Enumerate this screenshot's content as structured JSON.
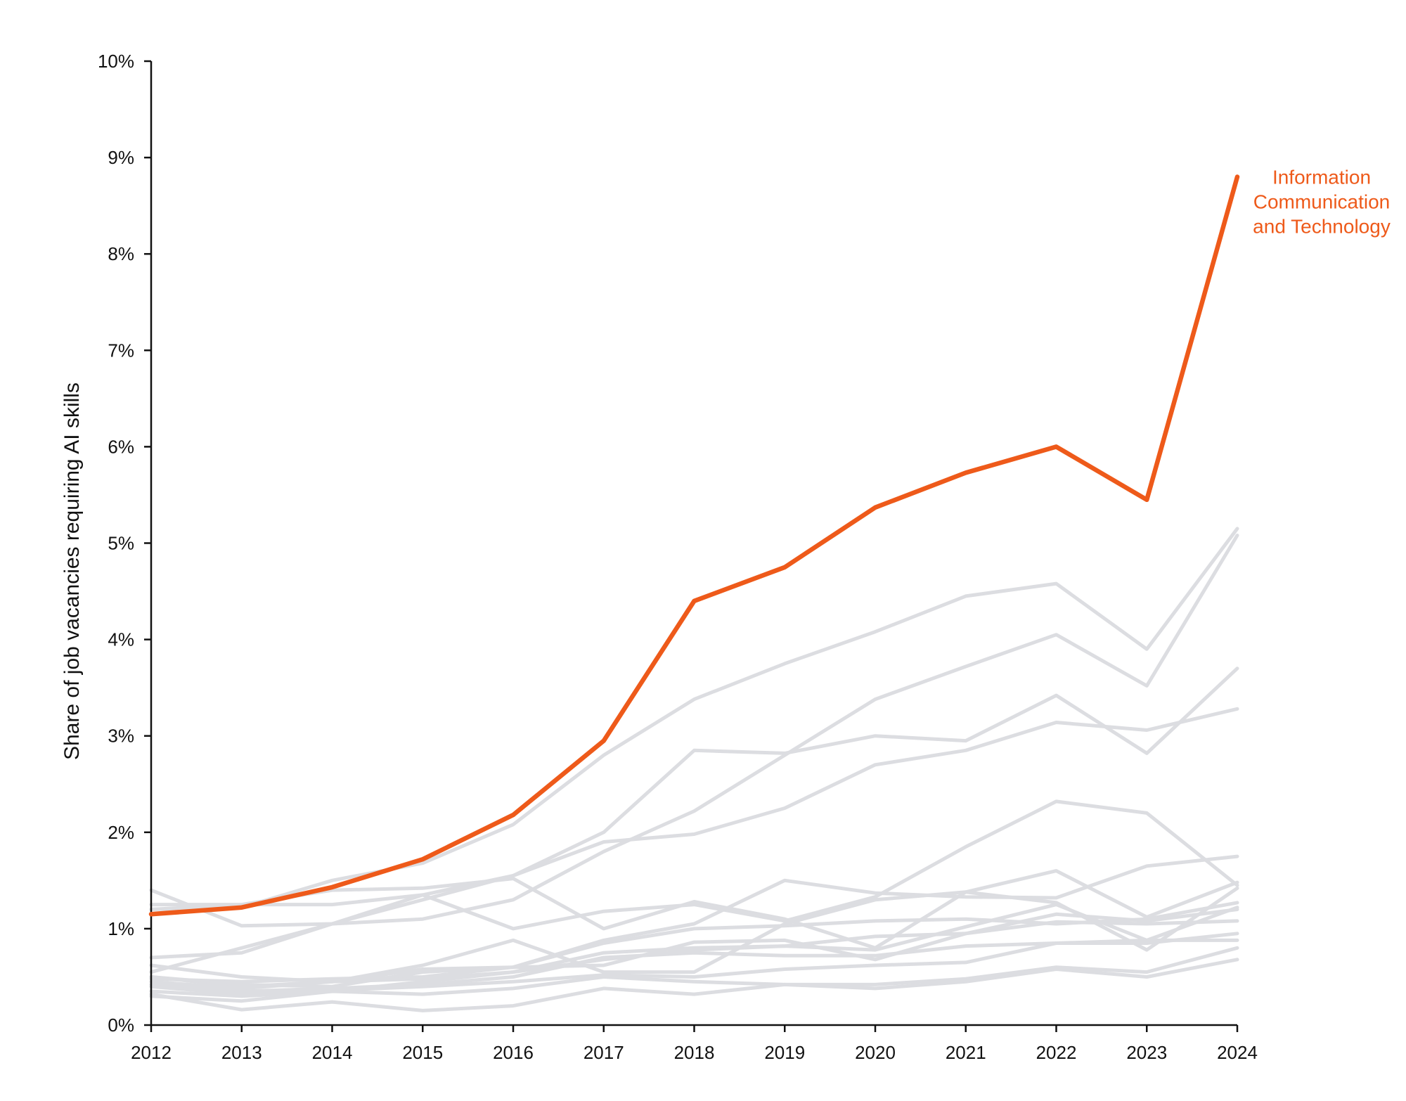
{
  "chart_data": {
    "type": "line",
    "ylabel": "Share of job vacancies requiring AI skills",
    "xlabel": "",
    "x": [
      2012,
      2013,
      2014,
      2015,
      2016,
      2017,
      2018,
      2019,
      2020,
      2021,
      2022,
      2023,
      2024
    ],
    "ylim": [
      0,
      10
    ],
    "yticks": [
      "0%",
      "1%",
      "2%",
      "3%",
      "4%",
      "5%",
      "6%",
      "7%",
      "8%",
      "9%",
      "10%"
    ],
    "xticks": [
      "2012",
      "2013",
      "2014",
      "2015",
      "2016",
      "2017",
      "2018",
      "2019",
      "2020",
      "2021",
      "2022",
      "2023",
      "2024"
    ],
    "grid": false,
    "highlight": {
      "name": "Information Communication and Technology",
      "label_lines": [
        "Information",
        "Communication",
        "and Technology"
      ],
      "color": "#ee5a1a",
      "values": [
        1.15,
        1.22,
        1.43,
        1.72,
        2.18,
        2.95,
        4.4,
        4.75,
        5.37,
        5.73,
        6.0,
        5.45,
        8.8
      ]
    },
    "background_color": "#dcdde1",
    "series": [
      {
        "values": [
          1.2,
          1.22,
          1.5,
          1.68,
          2.08,
          2.8,
          3.38,
          3.75,
          4.08,
          4.45,
          4.58,
          3.9,
          5.15
        ]
      },
      {
        "values": [
          1.25,
          1.25,
          1.25,
          1.35,
          1.55,
          2.0,
          2.85,
          2.82,
          3.0,
          2.95,
          3.42,
          2.82,
          3.7
        ]
      },
      {
        "values": [
          0.55,
          0.8,
          1.05,
          1.3,
          1.55,
          1.9,
          1.98,
          2.25,
          2.7,
          2.85,
          3.14,
          3.06,
          3.28
        ]
      },
      {
        "values": [
          0.7,
          0.75,
          1.05,
          1.1,
          1.3,
          1.8,
          2.22,
          2.8,
          3.38,
          3.72,
          4.05,
          3.52,
          5.08
        ]
      },
      {
        "values": [
          1.4,
          1.03,
          1.05,
          1.35,
          1.0,
          1.18,
          1.25,
          1.08,
          1.33,
          1.85,
          2.32,
          2.2,
          1.45
        ]
      },
      {
        "values": [
          1.2,
          1.25,
          1.4,
          1.42,
          1.52,
          1.0,
          1.28,
          1.1,
          0.8,
          1.38,
          1.6,
          1.12,
          1.48
        ]
      },
      {
        "values": [
          0.62,
          0.5,
          0.45,
          0.58,
          0.6,
          0.88,
          1.05,
          1.5,
          1.37,
          1.33,
          1.32,
          1.65,
          1.75
        ]
      },
      {
        "values": [
          0.5,
          0.4,
          0.45,
          0.62,
          0.88,
          0.55,
          0.55,
          1.05,
          1.3,
          1.38,
          1.27,
          0.78,
          1.42
        ]
      },
      {
        "values": [
          0.5,
          0.42,
          0.4,
          0.55,
          0.6,
          0.85,
          1.0,
          1.03,
          1.08,
          1.1,
          1.05,
          1.1,
          1.27
        ]
      },
      {
        "values": [
          0.3,
          0.25,
          0.35,
          0.45,
          0.55,
          0.75,
          0.8,
          0.82,
          0.78,
          1.02,
          1.25,
          0.88,
          1.22
        ]
      },
      {
        "values": [
          0.48,
          0.45,
          0.48,
          0.5,
          0.6,
          0.62,
          0.86,
          0.88,
          0.68,
          0.95,
          1.15,
          1.08,
          1.2
        ]
      },
      {
        "values": [
          0.45,
          0.38,
          0.45,
          0.48,
          0.55,
          0.68,
          0.78,
          0.82,
          0.92,
          0.95,
          1.07,
          1.05,
          1.08
        ]
      },
      {
        "values": [
          0.42,
          0.35,
          0.38,
          0.42,
          0.5,
          0.7,
          0.75,
          0.72,
          0.72,
          0.82,
          0.85,
          0.85,
          0.95
        ]
      },
      {
        "values": [
          0.4,
          0.32,
          0.36,
          0.4,
          0.45,
          0.52,
          0.5,
          0.58,
          0.62,
          0.65,
          0.85,
          0.88,
          0.88
        ]
      },
      {
        "values": [
          0.35,
          0.3,
          0.35,
          0.32,
          0.38,
          0.5,
          0.45,
          0.42,
          0.42,
          0.48,
          0.6,
          0.55,
          0.8
        ]
      },
      {
        "values": [
          0.32,
          0.16,
          0.24,
          0.15,
          0.2,
          0.38,
          0.32,
          0.42,
          0.38,
          0.45,
          0.58,
          0.5,
          0.68
        ]
      }
    ]
  }
}
